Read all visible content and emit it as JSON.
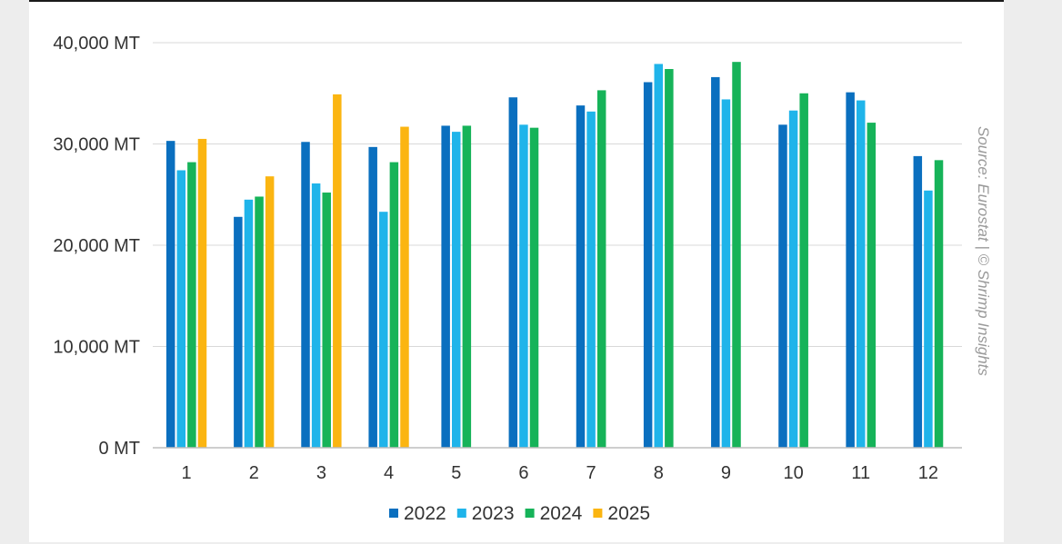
{
  "source_note": "Source: Eurostat | © Shrimp Insights",
  "chart_data": {
    "type": "bar",
    "categories": [
      "1",
      "2",
      "3",
      "4",
      "5",
      "6",
      "7",
      "8",
      "9",
      "10",
      "11",
      "12"
    ],
    "y_tick_labels": [
      "0 MT",
      "10,000 MT",
      "20,000 MT",
      "30,000 MT",
      "40,000 MT"
    ],
    "ylim": [
      0,
      40000
    ],
    "grid": true,
    "legend_position": "bottom",
    "series": [
      {
        "name": "2022",
        "color": "#0a6fbf",
        "values": [
          30300,
          22800,
          30200,
          29700,
          31800,
          34600,
          33800,
          36100,
          36600,
          31900,
          35100,
          28800
        ]
      },
      {
        "name": "2023",
        "color": "#1fb4ea",
        "values": [
          27400,
          24500,
          26100,
          23300,
          31200,
          31900,
          33200,
          37900,
          34400,
          33300,
          34300,
          25400
        ]
      },
      {
        "name": "2024",
        "color": "#16b359",
        "values": [
          28200,
          24800,
          25200,
          28200,
          31800,
          31600,
          35300,
          37400,
          38100,
          35000,
          32100,
          28400
        ]
      },
      {
        "name": "2025",
        "color": "#fbb511",
        "values": [
          30500,
          26800,
          34900,
          31700,
          null,
          null,
          null,
          null,
          null,
          null,
          null,
          null
        ]
      }
    ]
  }
}
